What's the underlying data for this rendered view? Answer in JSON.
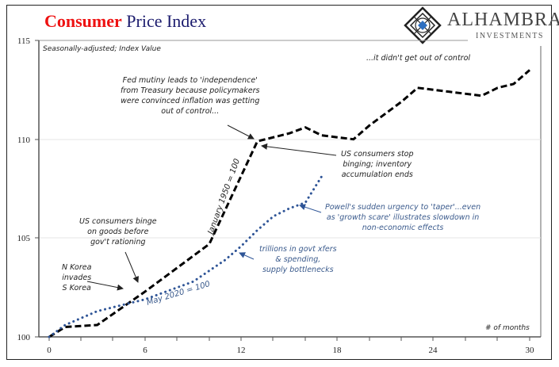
{
  "title": {
    "part1": "Consumer",
    "part2": "Price Index"
  },
  "logo": {
    "name": "ALHAMBRA",
    "sub": "INVESTMENTS",
    "icon": "diamond-lattice-icon"
  },
  "subtitle": "Seasonally-adjusted; Index Value",
  "x_axis_label": "# of months",
  "annotations": {
    "fed_mutiny": [
      "Fed mutiny leads to 'independence'",
      "from Treasury because policymakers",
      "were convinced inflation was getting",
      "out of control..."
    ],
    "didnt_get_out": "...it didn't get out of control",
    "stop_binging": [
      "US consumers stop",
      "binging; inventory",
      "accumulation ends"
    ],
    "powell": [
      "Powell's sudden urgency to 'taper'...even",
      "as 'growth scare' illustrates slowdown in",
      "non-economic effects"
    ],
    "trillions": [
      "trillions in govt xfers",
      "& spending,",
      "supply bottlenecks"
    ],
    "binge": [
      "US consumers binge",
      "on goods before",
      "gov't rationing"
    ],
    "korea": [
      "N Korea",
      "invades",
      "S Korea"
    ],
    "series1_label": "January 1950 = 100",
    "series2_label": "May 2020 = 100"
  },
  "chart_data": {
    "type": "line",
    "title": "Consumer Price Index",
    "subtitle": "Seasonally-adjusted; Index Value",
    "xlabel": "# of months",
    "ylabel": "",
    "xlim": [
      0,
      30
    ],
    "ylim": [
      100,
      115
    ],
    "x_ticks": [
      0,
      6,
      12,
      18,
      24,
      30
    ],
    "y_ticks": [
      100,
      105,
      110,
      115
    ],
    "grid": "horizontal light",
    "series": [
      {
        "name": "January 1950 = 100",
        "style": "black dashed",
        "color": "#000000",
        "x": [
          0,
          1,
          3,
          6,
          9,
          10,
          13,
          15,
          16,
          17,
          18,
          19,
          20,
          22,
          23,
          25,
          27,
          28,
          29,
          30
        ],
        "values": [
          100.0,
          100.5,
          100.6,
          102.3,
          104.1,
          104.7,
          109.9,
          110.3,
          110.6,
          110.2,
          110.1,
          110.0,
          110.7,
          111.9,
          112.6,
          112.4,
          112.2,
          112.6,
          112.8,
          113.5
        ]
      },
      {
        "name": "May 2020 = 100",
        "style": "blue dotted",
        "color": "#2f5597",
        "x": [
          0,
          1,
          3,
          5,
          6,
          9,
          11,
          12,
          13,
          14,
          15,
          16,
          17
        ],
        "values": [
          100.0,
          100.6,
          101.3,
          101.7,
          101.9,
          102.8,
          103.9,
          104.6,
          105.4,
          106.1,
          106.5,
          106.8,
          108.1
        ]
      }
    ]
  }
}
